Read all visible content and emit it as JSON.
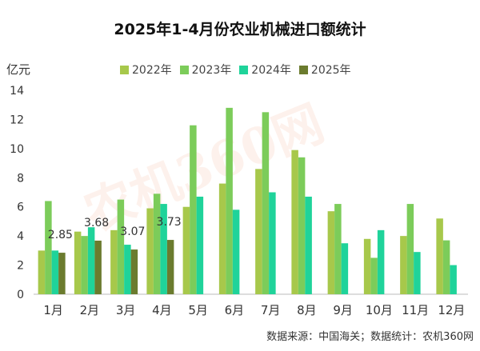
{
  "title": "2025年1-4月份农业机械进口额统计",
  "unit_label": "亿元",
  "watermark": "农机360网",
  "source": "数据来源：中国海关；数据统计：农机360网",
  "colors": {
    "2022": "#a7c84b",
    "2023": "#7ccc5a",
    "2024": "#1fd39a",
    "2025": "#6b7b2e"
  },
  "chart_data": {
    "type": "bar",
    "title": "2025年1-4月份农业机械进口额统计",
    "ylabel": "亿元",
    "ylim": [
      0,
      14
    ],
    "yticks": [
      0,
      2,
      4,
      6,
      8,
      10,
      12,
      14
    ],
    "categories": [
      "1月",
      "2月",
      "3月",
      "4月",
      "5月",
      "6月",
      "7月",
      "8月",
      "9月",
      "10月",
      "11月",
      "12月"
    ],
    "series": [
      {
        "name": "2022年",
        "values": [
          3.0,
          4.3,
          4.4,
          5.9,
          6.0,
          7.6,
          8.6,
          9.9,
          5.7,
          3.8,
          4.0,
          5.2
        ]
      },
      {
        "name": "2023年",
        "values": [
          6.4,
          4.0,
          6.5,
          6.9,
          11.6,
          12.8,
          12.5,
          9.4,
          6.2,
          2.5,
          6.2,
          3.7
        ]
      },
      {
        "name": "2024年",
        "values": [
          3.0,
          4.6,
          3.4,
          6.2,
          6.7,
          5.8,
          7.0,
          6.7,
          3.5,
          4.4,
          2.9,
          2.0
        ]
      },
      {
        "name": "2025年",
        "values": [
          2.85,
          3.68,
          3.07,
          3.73,
          null,
          null,
          null,
          null,
          null,
          null,
          null,
          null
        ]
      }
    ],
    "data_labels": [
      "2.85",
      "3.68",
      "3.07",
      "3.73"
    ]
  }
}
